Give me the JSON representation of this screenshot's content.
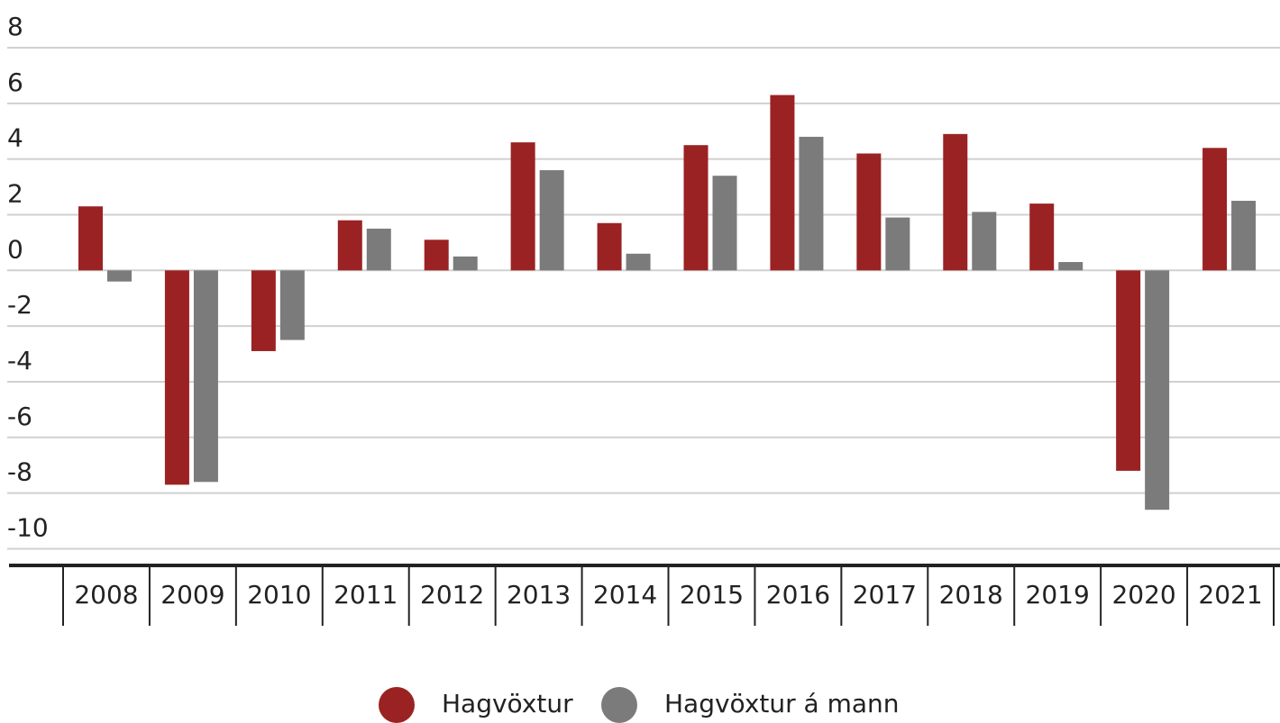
{
  "chart_data": {
    "type": "bar",
    "categories": [
      "2008",
      "2009",
      "2010",
      "2011",
      "2012",
      "2013",
      "2014",
      "2015",
      "2016",
      "2017",
      "2018",
      "2019",
      "2020",
      "2021"
    ],
    "series": [
      {
        "name": "Hagvöxtur",
        "color": "#9b2222",
        "values": [
          2.3,
          -7.7,
          -2.9,
          1.8,
          1.1,
          4.6,
          1.7,
          4.5,
          6.3,
          4.2,
          4.9,
          2.4,
          -7.2,
          4.4
        ]
      },
      {
        "name": "Hagvöxtur á mann",
        "color": "#7b7b7b",
        "values": [
          -0.4,
          -7.6,
          -2.5,
          1.5,
          0.5,
          3.6,
          0.6,
          3.4,
          4.8,
          1.9,
          2.1,
          0.3,
          -8.6,
          2.5
        ]
      }
    ],
    "ylim": [
      -10.6,
      8
    ],
    "yticks": [
      -10,
      -8,
      -6,
      -4,
      -2,
      0,
      2,
      4,
      6,
      8
    ],
    "grid": true,
    "legend": "bottom"
  }
}
